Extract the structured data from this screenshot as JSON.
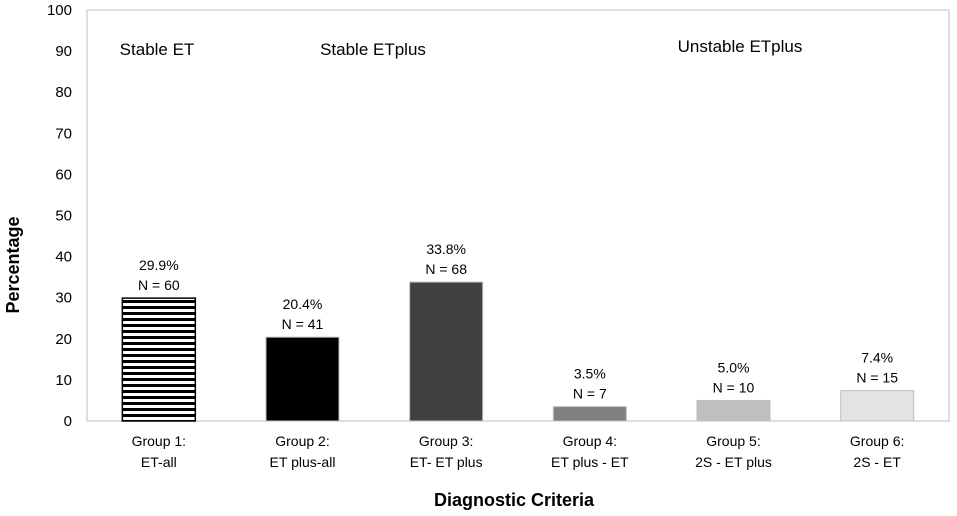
{
  "chart_data": {
    "type": "bar",
    "xlabel": "Diagnostic Criteria",
    "ylabel": "Percentage",
    "ylim": [
      0,
      100
    ],
    "yticks": [
      0,
      10,
      20,
      30,
      40,
      50,
      60,
      70,
      80,
      90,
      100
    ],
    "grid": false,
    "categories": [
      [
        "Group 1:",
        "ET-all"
      ],
      [
        "Group 2:",
        "ET plus-all"
      ],
      [
        "Group 3:",
        "ET- ET plus"
      ],
      [
        "Group 4:",
        "ET plus - ET"
      ],
      [
        "Group 5:",
        "2S - ET plus"
      ],
      [
        "Group 6:",
        "2S - ET"
      ]
    ],
    "values": [
      29.9,
      20.4,
      33.8,
      3.5,
      5.0,
      7.4
    ],
    "data_labels": [
      [
        "29.9%",
        "N = 60"
      ],
      [
        "20.4%",
        "N = 41"
      ],
      [
        "33.8%",
        "N = 68"
      ],
      [
        "3.5%",
        "N = 7"
      ],
      [
        "5.0%",
        "N = 10"
      ],
      [
        "7.4%",
        "N = 15"
      ]
    ],
    "bar_fills": [
      "stripes",
      "#000000",
      "#404040",
      "#808080",
      "#bfbfbf",
      "#e3e3e3"
    ],
    "annotations": [
      "Stable ET",
      "Stable ETplus",
      "Unstable ETplus"
    ]
  }
}
